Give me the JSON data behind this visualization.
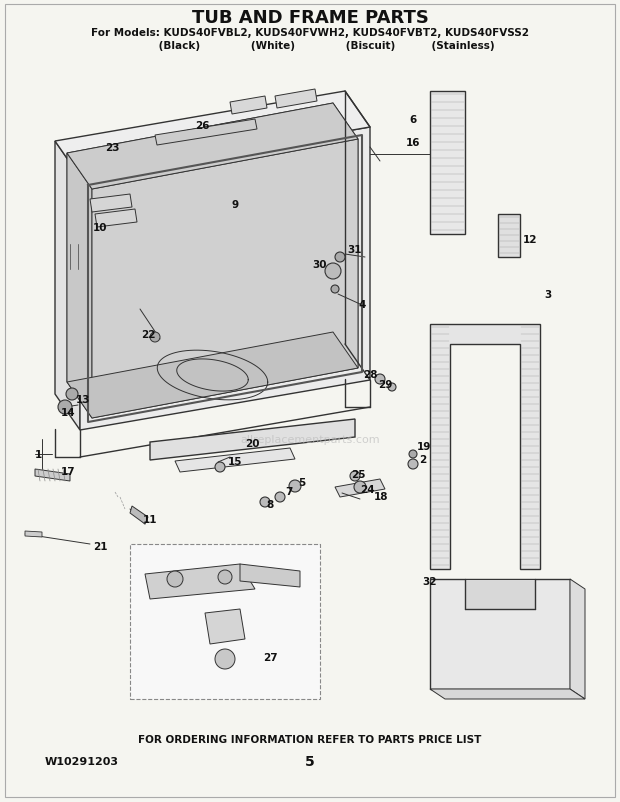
{
  "title": "TUB AND FRAME PARTS",
  "subtitle": "For Models: KUDS40FVBL2, KUDS40FVWH2, KUDS40FVBT2, KUDS40FVSS2",
  "subtitle2": "         (Black)              (White)              (Biscuit)          (Stainless)",
  "footer_text": "FOR ORDERING INFORMATION REFER TO PARTS PRICE LIST",
  "part_number": "W10291203",
  "page_number": "5",
  "bg_color": "#f5f5f0",
  "diagram_color": "#333333",
  "watermark": "allreplacementparts.com"
}
